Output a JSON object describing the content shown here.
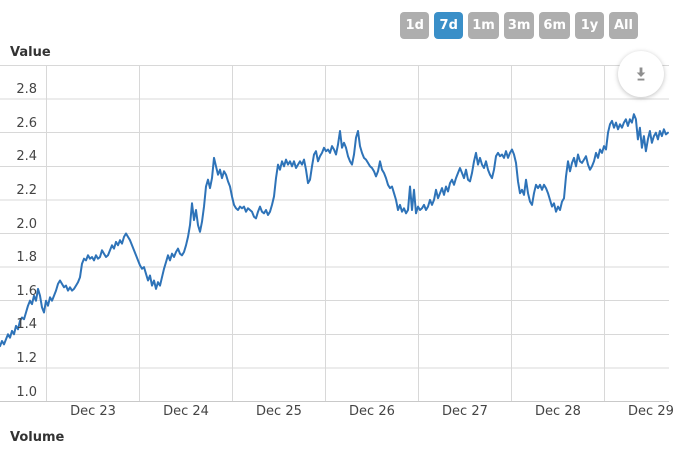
{
  "toolbar": {
    "active_color": "#3a8fc8",
    "inactive_color": "#aeaeae",
    "range_buttons": [
      {
        "label": "1d",
        "active": false
      },
      {
        "label": "7d",
        "active": true
      },
      {
        "label": "1m",
        "active": false
      },
      {
        "label": "3m",
        "active": false
      },
      {
        "label": "6m",
        "active": false
      },
      {
        "label": "1y",
        "active": false
      },
      {
        "label": "All",
        "active": false
      }
    ],
    "download_icon": "download-arrow-with-bar",
    "download_icon_color": "#8f8f8f"
  },
  "chart_data": {
    "type": "line",
    "title": "Value",
    "footer_title": "Volume",
    "line_color": "#2e73b8",
    "grid_color": "#d8d8d8",
    "axis_line_color": "#c9c9c9",
    "label_color": "#444444",
    "legend": "none",
    "grid": true,
    "y_axis": {
      "min": 1.0,
      "max": 3.0,
      "grid_values": [
        3.0,
        2.8,
        2.6,
        2.4,
        2.2,
        2.0,
        1.8,
        1.6,
        1.4,
        1.2
      ],
      "ticks": [
        2.8,
        2.6,
        2.4,
        2.2,
        2.0,
        1.8,
        1.6,
        1.4,
        1.2,
        1.0
      ],
      "tick_labels": [
        "2.8",
        "2.6",
        "2.4",
        "2.2",
        "2.0",
        "1.8",
        "1.6",
        "1.4",
        "1.2",
        "1.0"
      ]
    },
    "x_axis": {
      "unit": "days (0 = Dec 23 00:00)",
      "min_days": -0.5,
      "max_days": 6.694,
      "grid_days": [
        0,
        1,
        2,
        3,
        4,
        5,
        6
      ],
      "label_days": [
        0.5,
        1.5,
        2.5,
        3.5,
        4.5,
        5.5,
        6.5
      ],
      "labels": [
        "Dec 23",
        "Dec 24",
        "Dec 25",
        "Dec 26",
        "Dec 27",
        "Dec 28",
        "Dec 29"
      ]
    },
    "series": [
      {
        "name": "Value",
        "t_start_days": -0.5,
        "t_step_days": 0.021505,
        "values": [
          1.33,
          1.36,
          1.34,
          1.37,
          1.4,
          1.38,
          1.42,
          1.4,
          1.45,
          1.43,
          1.48,
          1.5,
          1.49,
          1.53,
          1.57,
          1.6,
          1.58,
          1.63,
          1.6,
          1.67,
          1.63,
          1.56,
          1.53,
          1.6,
          1.57,
          1.62,
          1.6,
          1.63,
          1.66,
          1.7,
          1.72,
          1.7,
          1.68,
          1.69,
          1.66,
          1.68,
          1.66,
          1.67,
          1.69,
          1.71,
          1.74,
          1.82,
          1.85,
          1.84,
          1.87,
          1.85,
          1.86,
          1.84,
          1.87,
          1.85,
          1.86,
          1.9,
          1.88,
          1.86,
          1.87,
          1.9,
          1.93,
          1.91,
          1.95,
          1.93,
          1.96,
          1.94,
          1.98,
          2.0,
          1.98,
          1.96,
          1.93,
          1.9,
          1.87,
          1.84,
          1.81,
          1.79,
          1.8,
          1.76,
          1.72,
          1.75,
          1.69,
          1.72,
          1.67,
          1.71,
          1.69,
          1.74,
          1.79,
          1.83,
          1.87,
          1.84,
          1.88,
          1.86,
          1.89,
          1.91,
          1.88,
          1.87,
          1.89,
          1.93,
          1.98,
          2.05,
          2.18,
          2.08,
          2.14,
          2.05,
          2.01,
          2.07,
          2.16,
          2.28,
          2.32,
          2.27,
          2.33,
          2.45,
          2.4,
          2.35,
          2.38,
          2.33,
          2.37,
          2.35,
          2.31,
          2.28,
          2.22,
          2.17,
          2.15,
          2.14,
          2.16,
          2.15,
          2.16,
          2.13,
          2.15,
          2.14,
          2.13,
          2.1,
          2.09,
          2.13,
          2.16,
          2.13,
          2.12,
          2.14,
          2.11,
          2.13,
          2.17,
          2.22,
          2.33,
          2.41,
          2.38,
          2.43,
          2.4,
          2.44,
          2.41,
          2.43,
          2.4,
          2.43,
          2.39,
          2.41,
          2.43,
          2.41,
          2.44,
          2.38,
          2.3,
          2.32,
          2.4,
          2.47,
          2.49,
          2.43,
          2.46,
          2.48,
          2.51,
          2.49,
          2.5,
          2.48,
          2.52,
          2.5,
          2.47,
          2.53,
          2.61,
          2.51,
          2.54,
          2.51,
          2.46,
          2.43,
          2.41,
          2.47,
          2.57,
          2.61,
          2.52,
          2.48,
          2.45,
          2.44,
          2.42,
          2.4,
          2.39,
          2.37,
          2.34,
          2.37,
          2.43,
          2.38,
          2.36,
          2.33,
          2.29,
          2.27,
          2.28,
          2.24,
          2.2,
          2.14,
          2.17,
          2.13,
          2.15,
          2.12,
          2.14,
          2.28,
          2.14,
          2.26,
          2.12,
          2.16,
          2.14,
          2.15,
          2.17,
          2.14,
          2.16,
          2.2,
          2.17,
          2.2,
          2.26,
          2.21,
          2.24,
          2.27,
          2.23,
          2.28,
          2.25,
          2.3,
          2.32,
          2.29,
          2.33,
          2.36,
          2.39,
          2.36,
          2.33,
          2.38,
          2.32,
          2.31,
          2.36,
          2.43,
          2.48,
          2.41,
          2.45,
          2.41,
          2.39,
          2.43,
          2.38,
          2.35,
          2.33,
          2.38,
          2.46,
          2.48,
          2.46,
          2.47,
          2.45,
          2.49,
          2.45,
          2.48,
          2.5,
          2.47,
          2.42,
          2.31,
          2.24,
          2.26,
          2.23,
          2.32,
          2.24,
          2.19,
          2.17,
          2.24,
          2.29,
          2.27,
          2.29,
          2.26,
          2.29,
          2.27,
          2.24,
          2.2,
          2.16,
          2.18,
          2.13,
          2.16,
          2.14,
          2.19,
          2.21,
          2.34,
          2.43,
          2.37,
          2.42,
          2.45,
          2.4,
          2.47,
          2.43,
          2.42,
          2.44,
          2.46,
          2.41,
          2.38,
          2.4,
          2.43,
          2.48,
          2.45,
          2.5,
          2.48,
          2.52,
          2.5,
          2.6,
          2.65,
          2.67,
          2.63,
          2.66,
          2.62,
          2.65,
          2.63,
          2.66,
          2.68,
          2.64,
          2.68,
          2.66,
          2.71,
          2.68,
          2.56,
          2.63,
          2.51,
          2.58,
          2.49,
          2.56,
          2.61,
          2.54,
          2.58,
          2.6,
          2.56,
          2.61,
          2.58,
          2.62,
          2.59,
          2.6
        ]
      }
    ]
  }
}
